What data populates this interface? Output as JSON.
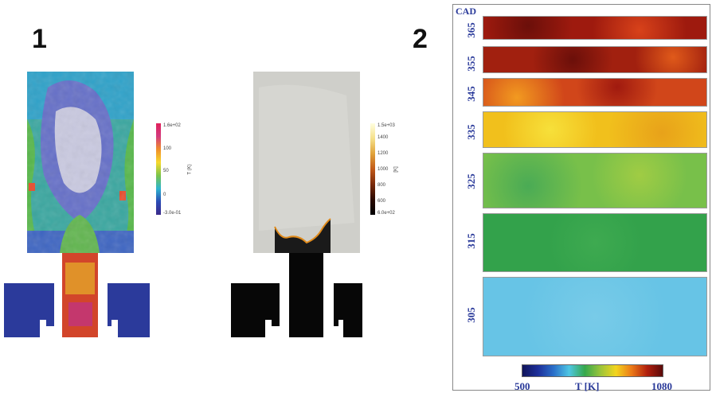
{
  "panel1": {
    "label": "1",
    "colorbar_color": {
      "max": "1.6e+02",
      "t1": "100",
      "t2": "50",
      "t3": "0",
      "min": "-3.0e-01",
      "unit": "T (K)"
    },
    "colorbar_gray": {
      "max": "1.5e+03",
      "t1": "1400",
      "t2": "1200",
      "t3": "1000",
      "t4": "800",
      "t5": "600",
      "min": "6.0e+02",
      "unit": "[K]"
    }
  },
  "panel2": {
    "label": "2",
    "cad_label": "CAD",
    "cad_ticks": [
      "365",
      "355",
      "345",
      "335",
      "325",
      "315",
      "305"
    ],
    "colorbar": {
      "min": "500",
      "label": "T [K]",
      "max": "1080"
    }
  },
  "colors": {
    "plot_blue": "#2b3a9b",
    "cad_365": "#9e1a0e",
    "cad_355": "#a1200f",
    "cad_345": "#d1461a",
    "cad_335": "#f1c01c",
    "cad_325": "#78c04a",
    "cad_315": "#33a24b",
    "cad_305": "#67c4e6"
  }
}
